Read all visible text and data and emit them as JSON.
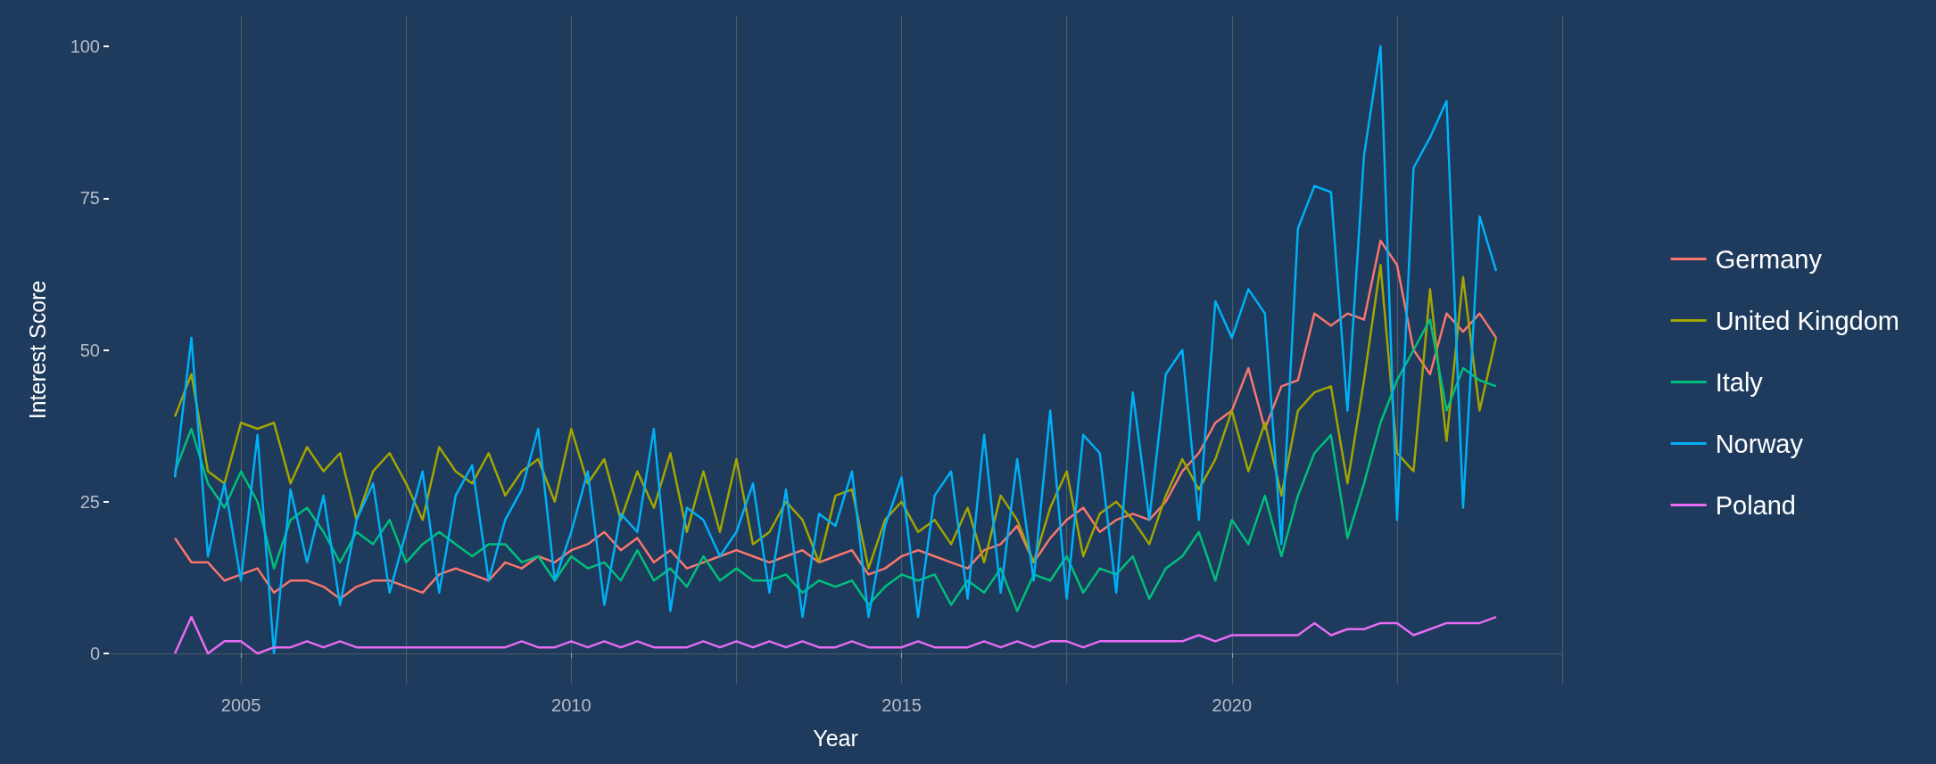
{
  "chart_data": {
    "type": "line",
    "xlabel": "Year",
    "ylabel": "Interest Score",
    "x": [
      2004,
      2004.25,
      2004.5,
      2004.75,
      2005,
      2005.25,
      2005.5,
      2005.75,
      2006,
      2006.25,
      2006.5,
      2006.75,
      2007,
      2007.25,
      2007.5,
      2007.75,
      2008,
      2008.25,
      2008.5,
      2008.75,
      2009,
      2009.25,
      2009.5,
      2009.75,
      2010,
      2010.25,
      2010.5,
      2010.75,
      2011,
      2011.25,
      2011.5,
      2011.75,
      2012,
      2012.25,
      2012.5,
      2012.75,
      2013,
      2013.25,
      2013.5,
      2013.75,
      2014,
      2014.25,
      2014.5,
      2014.75,
      2015,
      2015.25,
      2015.5,
      2015.75,
      2016,
      2016.25,
      2016.5,
      2016.75,
      2017,
      2017.25,
      2017.5,
      2017.75,
      2018,
      2018.25,
      2018.5,
      2018.75,
      2019,
      2019.25,
      2019.5,
      2019.75,
      2020,
      2020.25,
      2020.5,
      2020.75,
      2021,
      2021.25,
      2021.5,
      2021.75,
      2022,
      2022.25,
      2022.5,
      2022.75,
      2023,
      2023.25,
      2023.5,
      2023.75,
      2024
    ],
    "series": [
      {
        "name": "Germany",
        "color": "#f8766d",
        "values": [
          19,
          15,
          15,
          12,
          13,
          14,
          10,
          12,
          12,
          11,
          9,
          11,
          12,
          12,
          11,
          10,
          13,
          14,
          13,
          12,
          15,
          14,
          16,
          15,
          17,
          18,
          20,
          17,
          19,
          15,
          17,
          14,
          15,
          16,
          17,
          16,
          15,
          16,
          17,
          15,
          16,
          17,
          13,
          14,
          16,
          17,
          16,
          15,
          14,
          17,
          18,
          21,
          15,
          19,
          22,
          24,
          20,
          22,
          23,
          22,
          25,
          30,
          33,
          38,
          40,
          47,
          37,
          44,
          45,
          56,
          54,
          56,
          55,
          68,
          64,
          50,
          46,
          56,
          53,
          56,
          52
        ]
      },
      {
        "name": "United Kingdom",
        "color": "#a3a500",
        "values": [
          39,
          46,
          30,
          28,
          38,
          37,
          38,
          28,
          34,
          30,
          33,
          22,
          30,
          33,
          28,
          22,
          34,
          30,
          28,
          33,
          26,
          30,
          32,
          25,
          37,
          28,
          32,
          22,
          30,
          24,
          33,
          20,
          30,
          20,
          32,
          18,
          20,
          25,
          22,
          15,
          26,
          27,
          14,
          22,
          25,
          20,
          22,
          18,
          24,
          15,
          26,
          22,
          15,
          24,
          30,
          16,
          23,
          25,
          22,
          18,
          26,
          32,
          27,
          32,
          40,
          30,
          38,
          26,
          40,
          43,
          44,
          28,
          45,
          64,
          33,
          30,
          60,
          35,
          62,
          40,
          52
        ]
      },
      {
        "name": "Italy",
        "color": "#00bf7d",
        "values": [
          30,
          37,
          28,
          24,
          30,
          25,
          14,
          22,
          24,
          20,
          15,
          20,
          18,
          22,
          15,
          18,
          20,
          18,
          16,
          18,
          18,
          15,
          16,
          12,
          16,
          14,
          15,
          12,
          17,
          12,
          14,
          11,
          16,
          12,
          14,
          12,
          12,
          13,
          10,
          12,
          11,
          12,
          8,
          11,
          13,
          12,
          13,
          8,
          12,
          10,
          14,
          7,
          13,
          12,
          16,
          10,
          14,
          13,
          16,
          9,
          14,
          16,
          20,
          12,
          22,
          18,
          26,
          16,
          26,
          33,
          36,
          19,
          28,
          38,
          45,
          50,
          55,
          40,
          47,
          45,
          44
        ]
      },
      {
        "name": "Norway",
        "color": "#00b0f6",
        "values": [
          29,
          52,
          16,
          28,
          12,
          36,
          0,
          27,
          15,
          26,
          8,
          22,
          28,
          10,
          20,
          30,
          10,
          26,
          31,
          12,
          22,
          27,
          37,
          12,
          20,
          30,
          8,
          23,
          20,
          37,
          7,
          24,
          22,
          16,
          20,
          28,
          10,
          27,
          6,
          23,
          21,
          30,
          6,
          21,
          29,
          6,
          26,
          30,
          9,
          36,
          10,
          32,
          12,
          40,
          9,
          36,
          33,
          10,
          43,
          22,
          46,
          50,
          22,
          58,
          52,
          60,
          56,
          18,
          70,
          77,
          76,
          40,
          82,
          100,
          22,
          80,
          85,
          91,
          24,
          72,
          63
        ]
      },
      {
        "name": "Poland",
        "color": "#e76bf3",
        "values": [
          0,
          6,
          0,
          2,
          2,
          0,
          1,
          1,
          2,
          1,
          2,
          1,
          1,
          1,
          1,
          1,
          1,
          1,
          1,
          1,
          1,
          2,
          1,
          1,
          2,
          1,
          2,
          1,
          2,
          1,
          1,
          1,
          2,
          1,
          2,
          1,
          2,
          1,
          2,
          1,
          1,
          2,
          1,
          1,
          1,
          2,
          1,
          1,
          1,
          2,
          1,
          2,
          1,
          2,
          2,
          1,
          2,
          2,
          2,
          2,
          2,
          2,
          3,
          2,
          3,
          3,
          3,
          3,
          3,
          5,
          3,
          4,
          4,
          5,
          5,
          3,
          4,
          5,
          5,
          5,
          6
        ]
      }
    ],
    "xlim": [
      2003,
      2025
    ],
    "xticks": [
      2005,
      2010,
      2015,
      2020
    ],
    "ylim": [
      -5,
      105
    ],
    "yticks": [
      0,
      25,
      50,
      75,
      100
    ],
    "grid": "x",
    "legend": "right"
  }
}
